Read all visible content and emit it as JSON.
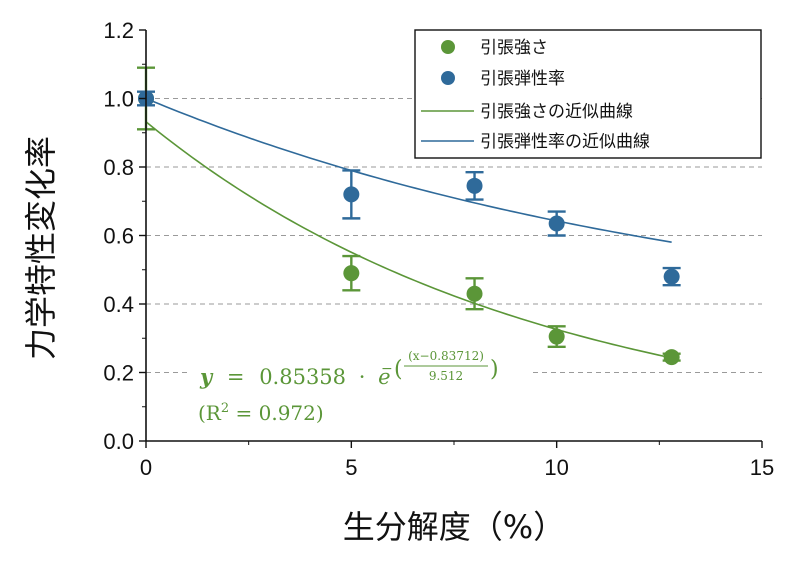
{
  "chart_data": {
    "type": "scatter",
    "xlabel": "生分解度（%）",
    "ylabel": "力学特性変化率",
    "xlim": [
      0,
      15
    ],
    "ylim": [
      0,
      1.2
    ],
    "xticks": [
      "0",
      "5",
      "10",
      "15"
    ],
    "yticks": [
      "0.0",
      "0.2",
      "0.4",
      "0.6",
      "0.8",
      "1.0",
      "1.2"
    ],
    "gridlines_y": [
      0.2,
      0.4,
      0.6,
      0.8,
      1.0
    ],
    "legend_position": "top-right",
    "series": [
      {
        "name": "引張強さ",
        "color": "#5b9638",
        "marker": "circle",
        "points": [
          {
            "x": 0,
            "y": 1.0,
            "err": 0.09
          },
          {
            "x": 5.0,
            "y": 0.49,
            "err": 0.05
          },
          {
            "x": 8.0,
            "y": 0.43,
            "err": 0.045
          },
          {
            "x": 10.0,
            "y": 0.305,
            "err": 0.03
          },
          {
            "x": 12.8,
            "y": 0.245,
            "err": 0.01
          }
        ]
      },
      {
        "name": "引張弾性率",
        "color": "#2f6a9a",
        "marker": "circle",
        "points": [
          {
            "x": 0,
            "y": 1.0,
            "err": 0.02
          },
          {
            "x": 5.0,
            "y": 0.72,
            "err": 0.07
          },
          {
            "x": 8.0,
            "y": 0.745,
            "err": 0.04
          },
          {
            "x": 10.0,
            "y": 0.635,
            "err": 0.035
          },
          {
            "x": 12.8,
            "y": 0.48,
            "err": 0.025
          }
        ]
      }
    ],
    "fits": [
      {
        "name": "引張強さの近似曲線",
        "color": "#5b9638",
        "model": "exp",
        "a": 0.85358,
        "x0": 0.83712,
        "t": 9.512,
        "offset": 0.0,
        "x_range": [
          0,
          12.8
        ]
      },
      {
        "name": "引張弾性率の近似曲線",
        "color": "#2f6a9a",
        "model": "exp",
        "a": 0.7,
        "x0": 0.0,
        "t": 14.0,
        "offset": 0.3,
        "x_range": [
          0,
          12.8
        ]
      }
    ],
    "annotation": {
      "equation_lhs": "y",
      "equation_eq": "=",
      "equation_coef": "0.85358",
      "equation_dot": "·",
      "equation_base": "e",
      "equation_sign": "−",
      "equation_numerator": "(x−0.83712)",
      "equation_denominator": "9.512",
      "r2_text": "(R",
      "r2_sup": "2",
      "r2_value": " = 0.972)"
    }
  }
}
